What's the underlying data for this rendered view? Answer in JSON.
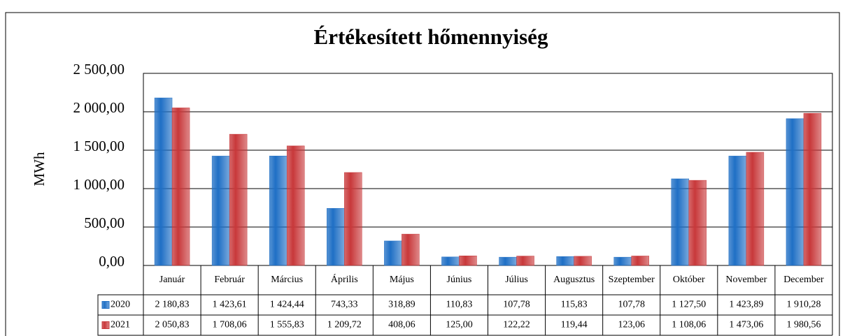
{
  "chart_data": {
    "type": "bar",
    "title": "Értékesített hőmennyiség",
    "y_label": "MWh",
    "categories": [
      "Január",
      "Február",
      "Március",
      "Április",
      "Május",
      "Június",
      "Július",
      "Augusztus",
      "Szeptember",
      "Október",
      "November",
      "December"
    ],
    "series": [
      {
        "name": "2020",
        "color": "#1f6fc5",
        "values": [
          2180.83,
          1423.61,
          1424.44,
          743.33,
          318.89,
          110.83,
          107.78,
          115.83,
          107.78,
          1127.5,
          1423.89,
          1910.28
        ],
        "value_labels": [
          "2 180,83",
          "1 423,61",
          "1 424,44",
          "743,33",
          "318,89",
          "110,83",
          "107,78",
          "115,83",
          "107,78",
          "1 127,50",
          "1 423,89",
          "1 910,28"
        ]
      },
      {
        "name": "2021",
        "color": "#c8383a",
        "values": [
          2050.83,
          1708.06,
          1555.83,
          1209.72,
          408.06,
          125.0,
          122.22,
          119.44,
          123.06,
          1108.06,
          1473.06,
          1980.56
        ],
        "value_labels": [
          "2 050,83",
          "1 708,06",
          "1 555,83",
          "1 209,72",
          "408,06",
          "125,00",
          "122,22",
          "119,44",
          "123,06",
          "1 108,06",
          "1 473,06",
          "1 980,56"
        ]
      }
    ],
    "ylim": [
      0,
      2500
    ],
    "yticks": [
      {
        "value": 0,
        "label": "0,00"
      },
      {
        "value": 500,
        "label": "500,00"
      },
      {
        "value": 1000,
        "label": "1 000,00"
      },
      {
        "value": 1500,
        "label": "1 500,00"
      },
      {
        "value": 2000,
        "label": "2 000,00"
      },
      {
        "value": 2500,
        "label": "2 500,00"
      }
    ],
    "grid": true
  }
}
